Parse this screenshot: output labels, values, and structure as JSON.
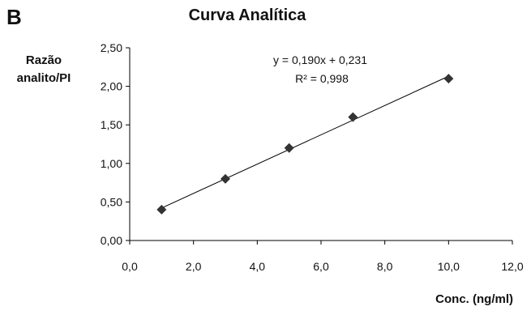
{
  "panel_label": "B",
  "chart_data": {
    "type": "scatter",
    "title": "Curva Analítica",
    "xlabel": "Conc. (ng/ml)",
    "ylabel_lines": [
      "Razão",
      "analito/PI"
    ],
    "xlim": [
      0,
      12
    ],
    "ylim": [
      0,
      2.5
    ],
    "x_ticks": [
      "0,0",
      "2,0",
      "4,0",
      "6,0",
      "8,0",
      "10,0",
      "12,0"
    ],
    "y_ticks": [
      "0,00",
      "0,50",
      "1,00",
      "1,50",
      "2,00",
      "2,50"
    ],
    "grid": false,
    "marker": "diamond",
    "marker_color": "#333333",
    "line_color": "#000000",
    "points": [
      {
        "x": 1,
        "y": 0.4
      },
      {
        "x": 3,
        "y": 0.8
      },
      {
        "x": 5,
        "y": 1.2
      },
      {
        "x": 7,
        "y": 1.6
      },
      {
        "x": 10,
        "y": 2.1
      }
    ],
    "trendline": {
      "slope": 0.19,
      "intercept": 0.231,
      "x_range": [
        1,
        10
      ]
    },
    "annotations": [
      "y = 0,190x + 0,231",
      "R² = 0,998"
    ]
  }
}
